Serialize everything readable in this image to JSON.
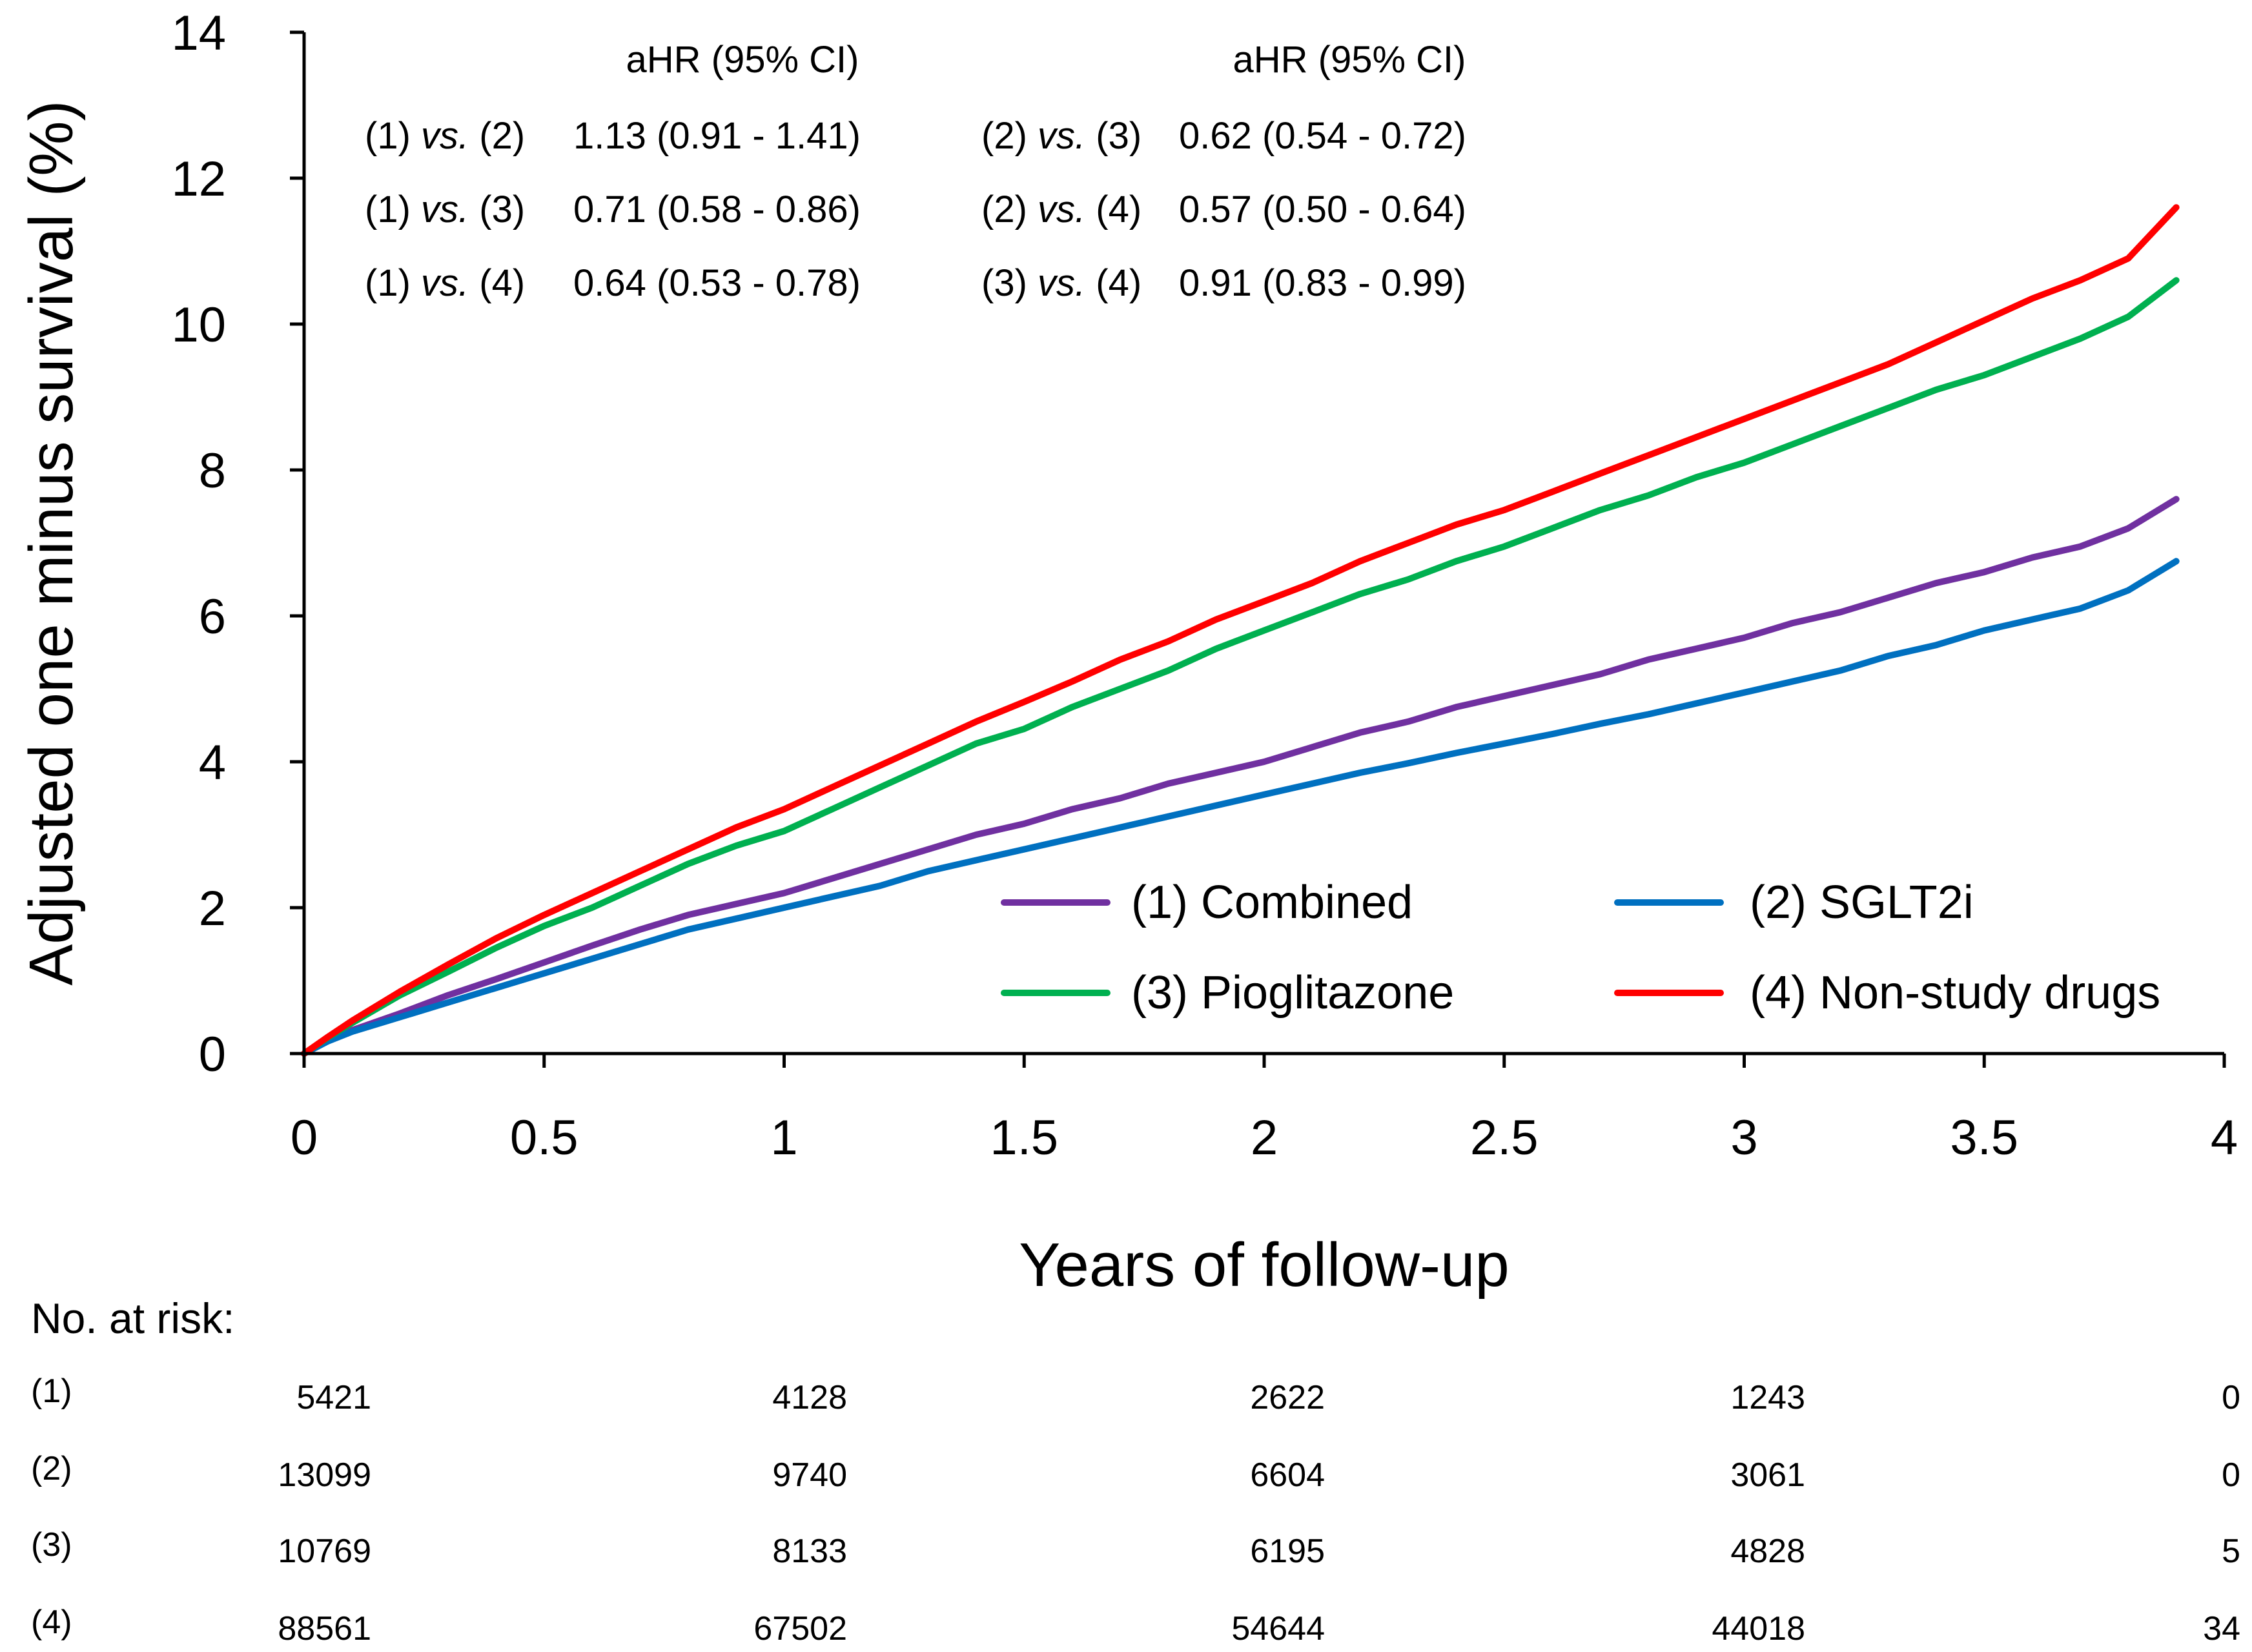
{
  "chart_data": {
    "type": "line",
    "title": "",
    "xlabel": "Years of follow-up",
    "ylabel": "Adjusted one minus survival (%)",
    "xlim": [
      0,
      4
    ],
    "ylim": [
      0,
      14
    ],
    "xticks": [
      {
        "value": 0,
        "label": "0"
      },
      {
        "value": 0.5,
        "label": "0.5"
      },
      {
        "value": 1,
        "label": "1"
      },
      {
        "value": 1.5,
        "label": "1.5"
      },
      {
        "value": 2,
        "label": "2"
      },
      {
        "value": 2.5,
        "label": "2.5"
      },
      {
        "value": 3,
        "label": "3"
      },
      {
        "value": 3.5,
        "label": "3.5"
      },
      {
        "value": 4,
        "label": "4"
      }
    ],
    "yticks": [
      {
        "value": 0,
        "label": "0"
      },
      {
        "value": 2,
        "label": "2"
      },
      {
        "value": 4,
        "label": "4"
      },
      {
        "value": 6,
        "label": "6"
      },
      {
        "value": 8,
        "label": "8"
      },
      {
        "value": 10,
        "label": "10"
      },
      {
        "value": 12,
        "label": "12"
      },
      {
        "value": 14,
        "label": "14"
      }
    ],
    "grid": false,
    "legend_position": "bottom-right",
    "x": [
      0,
      0.05,
      0.1,
      0.2,
      0.3,
      0.4,
      0.5,
      0.6,
      0.7,
      0.8,
      0.9,
      1.0,
      1.1,
      1.2,
      1.3,
      1.4,
      1.5,
      1.6,
      1.7,
      1.8,
      1.9,
      2.0,
      2.1,
      2.2,
      2.3,
      2.4,
      2.5,
      2.6,
      2.7,
      2.8,
      2.9,
      3.0,
      3.1,
      3.2,
      3.3,
      3.4,
      3.5,
      3.6,
      3.7,
      3.8,
      3.9
    ],
    "series": [
      {
        "name": "(1) Combined",
        "color": "#7030A0",
        "values": [
          0,
          0.18,
          0.32,
          0.55,
          0.8,
          1.02,
          1.25,
          1.48,
          1.7,
          1.9,
          2.05,
          2.2,
          2.4,
          2.6,
          2.8,
          3.0,
          3.15,
          3.35,
          3.5,
          3.7,
          3.85,
          4.0,
          4.2,
          4.4,
          4.55,
          4.75,
          4.9,
          5.05,
          5.2,
          5.4,
          5.55,
          5.7,
          5.9,
          6.05,
          6.25,
          6.45,
          6.6,
          6.8,
          6.95,
          7.2,
          7.6
        ]
      },
      {
        "name": "(2) SGLT2i",
        "color": "#0070C0",
        "values": [
          0,
          0.17,
          0.3,
          0.5,
          0.7,
          0.9,
          1.1,
          1.3,
          1.5,
          1.7,
          1.85,
          2.0,
          2.15,
          2.3,
          2.5,
          2.65,
          2.8,
          2.95,
          3.1,
          3.25,
          3.4,
          3.55,
          3.7,
          3.85,
          3.98,
          4.12,
          4.25,
          4.38,
          4.52,
          4.65,
          4.8,
          4.95,
          5.1,
          5.25,
          5.45,
          5.6,
          5.8,
          5.95,
          6.1,
          6.35,
          6.75
        ]
      },
      {
        "name": "(3) Pioglitazone",
        "color": "#00B050",
        "values": [
          0,
          0.22,
          0.42,
          0.8,
          1.12,
          1.45,
          1.75,
          2.0,
          2.3,
          2.6,
          2.85,
          3.05,
          3.35,
          3.65,
          3.95,
          4.25,
          4.45,
          4.75,
          5.0,
          5.25,
          5.55,
          5.8,
          6.05,
          6.3,
          6.5,
          6.75,
          6.95,
          7.2,
          7.45,
          7.65,
          7.9,
          8.1,
          8.35,
          8.6,
          8.85,
          9.1,
          9.3,
          9.55,
          9.8,
          10.1,
          10.6
        ]
      },
      {
        "name": "(4) Non-study drugs",
        "color": "#FF0000",
        "values": [
          0,
          0.23,
          0.45,
          0.85,
          1.22,
          1.58,
          1.9,
          2.2,
          2.5,
          2.8,
          3.1,
          3.35,
          3.65,
          3.95,
          4.25,
          4.55,
          4.82,
          5.1,
          5.4,
          5.65,
          5.95,
          6.2,
          6.45,
          6.75,
          7.0,
          7.25,
          7.45,
          7.7,
          7.95,
          8.2,
          8.45,
          8.7,
          8.95,
          9.2,
          9.45,
          9.75,
          10.05,
          10.35,
          10.6,
          10.9,
          11.6
        ]
      }
    ],
    "annotations": {
      "headers": [
        "aHR (95% CI)",
        "aHR (95% CI)"
      ],
      "rows": [
        {
          "left_a": "(1)",
          "left_vs": "vs.",
          "left_b": "(2)",
          "left_value": "1.13 (0.91 - 1.41)",
          "right_a": "(2)",
          "right_vs": "vs.",
          "right_b": "(3)",
          "right_value": "0.62 (0.54 - 0.72)"
        },
        {
          "left_a": "(1)",
          "left_vs": "vs.",
          "left_b": "(3)",
          "left_value": "0.71 (0.58 - 0.86)",
          "right_a": "(2)",
          "right_vs": "vs.",
          "right_b": "(4)",
          "right_value": "0.57 (0.50 - 0.64)"
        },
        {
          "left_a": "(1)",
          "left_vs": "vs.",
          "left_b": "(4)",
          "left_value": "0.64 (0.53 - 0.78)",
          "right_a": "(3)",
          "right_vs": "vs.",
          "right_b": "(4)",
          "right_value": "0.91 (0.83 - 0.99)"
        }
      ]
    },
    "risk_table": {
      "title": "No. at risk:",
      "rows": [
        {
          "label": "(1)",
          "values": [
            "5421",
            "4128",
            "2622",
            "1243",
            "0"
          ]
        },
        {
          "label": "(2)",
          "values": [
            "13099",
            "9740",
            "6604",
            "3061",
            "0"
          ]
        },
        {
          "label": "(3)",
          "values": [
            "10769",
            "8133",
            "6195",
            "4828",
            "5"
          ]
        },
        {
          "label": "(4)",
          "values": [
            "88561",
            "67502",
            "54644",
            "44018",
            "34"
          ]
        }
      ]
    }
  }
}
